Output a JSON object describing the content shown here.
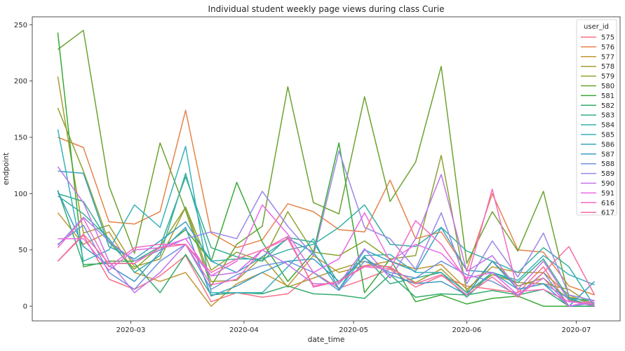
{
  "chart_data": {
    "type": "line",
    "title": "Individual student weekly page views during class Curie",
    "xlabel": "date_time",
    "ylabel": "endpoint",
    "legend_title": "user_id",
    "legend_position": "top-right",
    "x": [
      "2020-02-10",
      "2020-02-17",
      "2020-02-24",
      "2020-03-02",
      "2020-03-09",
      "2020-03-16",
      "2020-03-23",
      "2020-03-30",
      "2020-04-06",
      "2020-04-13",
      "2020-04-20",
      "2020-04-27",
      "2020-05-04",
      "2020-05-11",
      "2020-05-18",
      "2020-05-25",
      "2020-06-01",
      "2020-06-08",
      "2020-06-15",
      "2020-06-22",
      "2020-06-29",
      "2020-07-06"
    ],
    "xlim": [
      "2020-02-03",
      "2020-07-13"
    ],
    "xticks": [
      "2020-03",
      "2020-04",
      "2020-05",
      "2020-06",
      "2020-07"
    ],
    "xtick_dates": [
      "2020-03-01",
      "2020-04-01",
      "2020-05-01",
      "2020-06-01",
      "2020-07-01"
    ],
    "ylim": [
      -13,
      257
    ],
    "yticks": [
      0,
      50,
      100,
      150,
      200,
      250
    ],
    "grid": false,
    "series": [
      {
        "name": "575",
        "color": "#f77189",
        "values": [
          40,
          63,
          24,
          15,
          27,
          45,
          4,
          12,
          8,
          11,
          30,
          16,
          24,
          33,
          17,
          27,
          18,
          15,
          12,
          35,
          0,
          0
        ]
      },
      {
        "name": "576",
        "color": "#e7834a",
        "values": [
          150,
          141,
          75,
          73,
          84,
          174,
          65,
          52,
          59,
          91,
          84,
          68,
          66,
          112,
          60,
          66,
          32,
          100,
          50,
          48,
          18,
          10
        ]
      },
      {
        "name": "577",
        "color": "#c39532",
        "values": [
          83,
          55,
          66,
          30,
          22,
          30,
          0,
          20,
          30,
          18,
          45,
          30,
          36,
          40,
          33,
          37,
          15,
          35,
          30,
          30,
          10,
          0
        ]
      },
      {
        "name": "578",
        "color": "#a69d31",
        "values": [
          204,
          65,
          72,
          35,
          42,
          88,
          22,
          23,
          44,
          17,
          25,
          33,
          40,
          34,
          21,
          33,
          12,
          28,
          21,
          20,
          15,
          0
        ]
      },
      {
        "name": "579",
        "color": "#8ca431",
        "values": [
          176,
          120,
          57,
          33,
          53,
          88,
          32,
          48,
          40,
          84,
          48,
          45,
          58,
          42,
          45,
          134,
          13,
          40,
          18,
          25,
          6,
          0
        ]
      },
      {
        "name": "580",
        "color": "#6ba331",
        "values": [
          228,
          245,
          107,
          47,
          145,
          85,
          18,
          55,
          71,
          195,
          92,
          82,
          186,
          93,
          128,
          213,
          38,
          84,
          49,
          102,
          8,
          3
        ]
      },
      {
        "name": "581",
        "color": "#38a935",
        "values": [
          243,
          35,
          40,
          40,
          50,
          68,
          40,
          110,
          57,
          22,
          48,
          145,
          12,
          42,
          4,
          10,
          2,
          7,
          9,
          0,
          0,
          0
        ]
      },
      {
        "name": "582",
        "color": "#35ac6d",
        "values": [
          103,
          37,
          38,
          38,
          12,
          46,
          10,
          12,
          11,
          18,
          11,
          10,
          7,
          28,
          8,
          11,
          10,
          14,
          10,
          15,
          0,
          0
        ]
      },
      {
        "name": "583",
        "color": "#36ae8f",
        "values": [
          100,
          93,
          57,
          40,
          53,
          115,
          52,
          44,
          40,
          61,
          57,
          20,
          44,
          20,
          25,
          30,
          8,
          30,
          21,
          42,
          7,
          5
        ]
      },
      {
        "name": "584",
        "color": "#37b0a5",
        "values": [
          98,
          82,
          60,
          30,
          45,
          118,
          40,
          42,
          42,
          50,
          55,
          70,
          90,
          55,
          53,
          70,
          49,
          40,
          30,
          52,
          35,
          0
        ]
      },
      {
        "name": "585",
        "color": "#39b2bb",
        "values": [
          157,
          40,
          50,
          90,
          70,
          142,
          12,
          12,
          12,
          35,
          60,
          15,
          45,
          46,
          30,
          30,
          12,
          30,
          23,
          45,
          28,
          19
        ]
      },
      {
        "name": "586",
        "color": "#3ba3bf",
        "values": [
          120,
          118,
          53,
          42,
          58,
          75,
          40,
          30,
          44,
          60,
          48,
          15,
          50,
          40,
          31,
          70,
          32,
          30,
          15,
          20,
          7,
          0
        ]
      },
      {
        "name": "587",
        "color": "#3e9bc6",
        "values": [
          102,
          53,
          36,
          22,
          48,
          70,
          9,
          18,
          30,
          40,
          42,
          22,
          43,
          28,
          20,
          22,
          10,
          40,
          15,
          20,
          0,
          22
        ]
      },
      {
        "name": "588",
        "color": "#6c94de",
        "values": [
          55,
          72,
          30,
          15,
          40,
          55,
          15,
          28,
          36,
          40,
          30,
          14,
          40,
          30,
          25,
          40,
          28,
          22,
          10,
          30,
          0,
          3
        ]
      },
      {
        "name": "589",
        "color": "#9b87e6",
        "values": [
          54,
          79,
          58,
          40,
          50,
          60,
          66,
          60,
          102,
          71,
          45,
          138,
          70,
          60,
          33,
          83,
          20,
          58,
          26,
          65,
          10,
          5
        ]
      },
      {
        "name": "590",
        "color": "#c174ea",
        "values": [
          124,
          92,
          40,
          12,
          30,
          55,
          27,
          30,
          50,
          37,
          20,
          20,
          51,
          25,
          60,
          117,
          31,
          45,
          15,
          40,
          5,
          0
        ]
      },
      {
        "name": "591",
        "color": "#e968e6",
        "values": [
          60,
          60,
          32,
          50,
          52,
          60,
          27,
          40,
          90,
          64,
          30,
          42,
          83,
          40,
          55,
          47,
          25,
          30,
          10,
          25,
          0,
          5
        ]
      },
      {
        "name": "616",
        "color": "#f46ac4",
        "values": [
          52,
          78,
          35,
          52,
          55,
          55,
          19,
          24,
          50,
          62,
          17,
          22,
          35,
          33,
          76,
          55,
          23,
          104,
          13,
          15,
          4,
          2
        ]
      },
      {
        "name": "617",
        "color": "#f66da5",
        "values": [
          40,
          64,
          38,
          38,
          52,
          55,
          30,
          42,
          50,
          60,
          18,
          22,
          36,
          35,
          20,
          28,
          10,
          26,
          8,
          30,
          53,
          10
        ]
      }
    ]
  }
}
